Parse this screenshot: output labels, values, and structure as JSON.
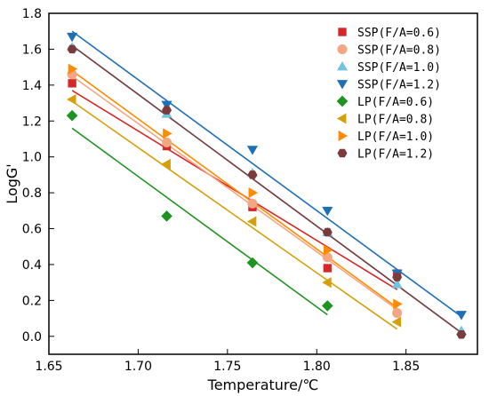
{
  "chart_data": {
    "type": "scatter",
    "title": "",
    "xlabel": "Temperature/℃",
    "ylabel": "LogG'",
    "xlim": [
      1.65,
      1.89
    ],
    "ylim": [
      -0.1,
      1.8
    ],
    "xticks": [
      "1.65",
      "1.70",
      "1.75",
      "1.80",
      "1.85"
    ],
    "yticks": [
      "0.0",
      "0.2",
      "0.4",
      "0.6",
      "0.8",
      "1.0",
      "1.2",
      "1.4",
      "1.6",
      "1.8"
    ],
    "legend_position": "top-right",
    "grid": false,
    "series": [
      {
        "name": "SSP(F/A=0.6)",
        "color": "#d62728",
        "marker": "square",
        "points": [
          [
            1.663,
            1.41
          ],
          [
            1.716,
            1.06
          ],
          [
            1.764,
            0.72
          ],
          [
            1.806,
            0.38
          ],
          [
            1.845,
            0.35
          ]
        ],
        "fit": [
          [
            1.663,
            1.37
          ],
          [
            1.845,
            0.26
          ]
        ]
      },
      {
        "name": "SSP(F/A=0.8)",
        "color": "#f4a582",
        "marker": "circle",
        "points": [
          [
            1.663,
            1.46
          ],
          [
            1.716,
            1.08
          ],
          [
            1.764,
            0.74
          ],
          [
            1.806,
            0.44
          ],
          [
            1.845,
            0.13
          ]
        ],
        "fit": [
          [
            1.663,
            1.45
          ],
          [
            1.845,
            0.15
          ]
        ]
      },
      {
        "name": "SSP(F/A=1.0)",
        "color": "#6fc4e0",
        "marker": "triangle-up",
        "points": [
          [
            1.663,
            1.61
          ],
          [
            1.716,
            1.24
          ],
          [
            1.764,
            0.91
          ],
          [
            1.806,
            0.58
          ],
          [
            1.845,
            0.29
          ],
          [
            1.881,
            0.03
          ]
        ],
        "fit": [
          [
            1.663,
            1.62
          ],
          [
            1.881,
            0.02
          ]
        ]
      },
      {
        "name": "SSP(F/A=1.2)",
        "color": "#1f6fb5",
        "marker": "triangle-down",
        "points": [
          [
            1.663,
            1.67
          ],
          [
            1.716,
            1.29
          ],
          [
            1.764,
            1.04
          ],
          [
            1.806,
            0.7
          ],
          [
            1.845,
            0.35
          ],
          [
            1.881,
            0.12
          ]
        ],
        "fit": [
          [
            1.663,
            1.7
          ],
          [
            1.881,
            0.11
          ]
        ]
      },
      {
        "name": "LP(F/A=0.6)",
        "color": "#1e9420",
        "marker": "diamond",
        "points": [
          [
            1.663,
            1.23
          ],
          [
            1.716,
            0.67
          ],
          [
            1.764,
            0.41
          ],
          [
            1.806,
            0.17
          ]
        ],
        "fit": [
          [
            1.663,
            1.16
          ],
          [
            1.806,
            0.12
          ]
        ]
      },
      {
        "name": "LP(F/A=0.8)",
        "color": "#d4a00c",
        "marker": "triangle-left",
        "points": [
          [
            1.663,
            1.32
          ],
          [
            1.716,
            0.96
          ],
          [
            1.764,
            0.64
          ],
          [
            1.806,
            0.3
          ],
          [
            1.845,
            0.08
          ]
        ],
        "fit": [
          [
            1.663,
            1.31
          ],
          [
            1.845,
            0.04
          ]
        ]
      },
      {
        "name": "LP(F/A=1.0)",
        "color": "#ff8c00",
        "marker": "triangle-right",
        "points": [
          [
            1.663,
            1.49
          ],
          [
            1.716,
            1.13
          ],
          [
            1.764,
            0.8
          ],
          [
            1.806,
            0.48
          ],
          [
            1.845,
            0.18
          ]
        ],
        "fit": [
          [
            1.663,
            1.48
          ],
          [
            1.845,
            0.16
          ]
        ]
      },
      {
        "name": "LP(F/A=1.2)",
        "color": "#7b3b3b",
        "marker": "hexagon",
        "points": [
          [
            1.663,
            1.6
          ],
          [
            1.716,
            1.26
          ],
          [
            1.764,
            0.9
          ],
          [
            1.806,
            0.58
          ],
          [
            1.845,
            0.33
          ],
          [
            1.881,
            0.01
          ]
        ],
        "fit": [
          [
            1.663,
            1.62
          ],
          [
            1.881,
            0.02
          ]
        ]
      }
    ]
  }
}
